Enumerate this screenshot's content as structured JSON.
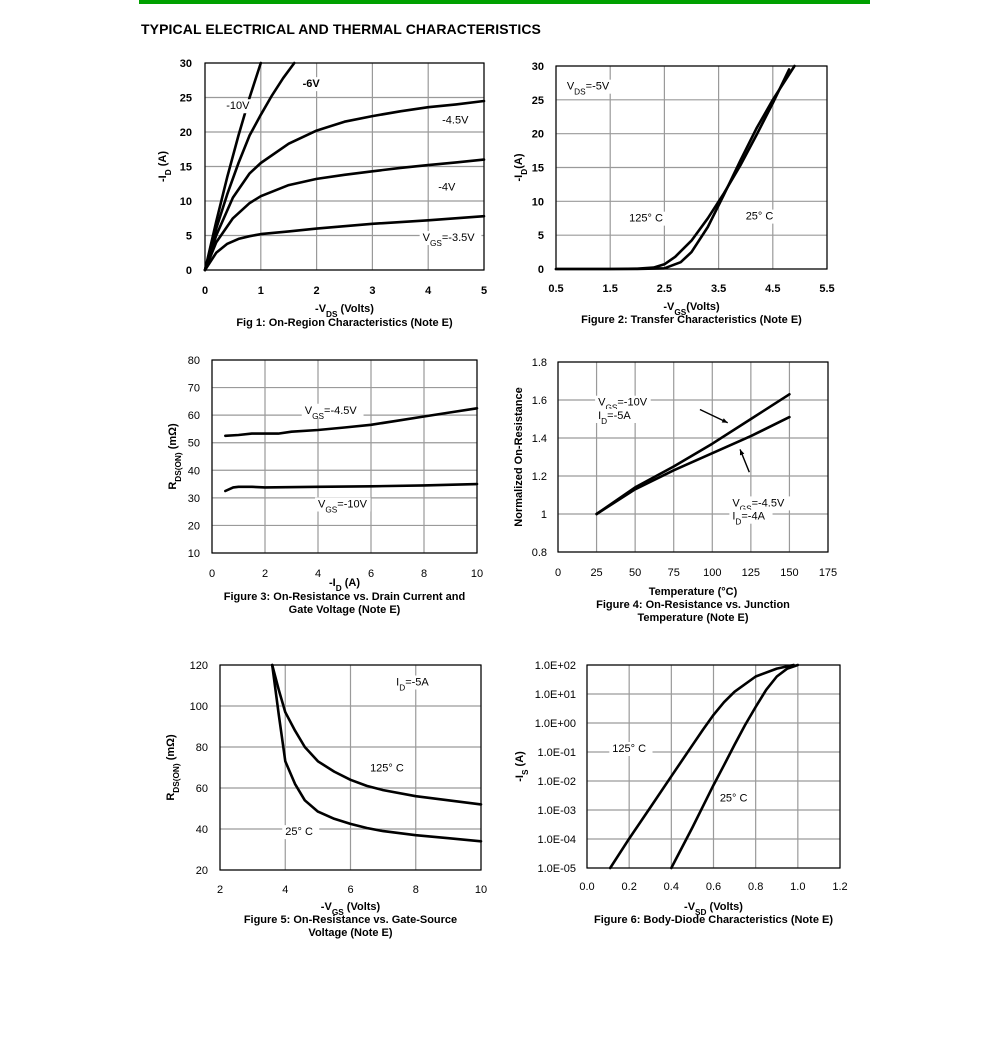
{
  "header": {
    "title": "TYPICAL ELECTRICAL AND THERMAL CHARACTERISTICS",
    "accent_color": "#00a000"
  },
  "chart_data": [
    {
      "type": "line",
      "caption": "Fig 1: On-Region Characteristics (Note E)",
      "xlabel": "-VDS (Volts)",
      "ylabel": "-ID (A)",
      "xlim": [
        0,
        5
      ],
      "ylim": [
        0,
        30
      ],
      "xticks": [
        "0",
        "1",
        "2",
        "3",
        "4",
        "5"
      ],
      "yticks": [
        "0",
        "5",
        "10",
        "15",
        "20",
        "25",
        "30"
      ],
      "grid": true,
      "series": [
        {
          "name": "-10V",
          "x": [
            0,
            0.2,
            0.4,
            0.6,
            0.8,
            1.0
          ],
          "y": [
            0,
            7,
            13.5,
            19.5,
            25,
            30
          ]
        },
        {
          "name": "-6V",
          "x": [
            0,
            0.2,
            0.4,
            0.6,
            0.8,
            1.0,
            1.2,
            1.4,
            1.6
          ],
          "y": [
            0,
            6,
            11,
            15.5,
            19.5,
            22.5,
            25.3,
            27.8,
            30
          ]
        },
        {
          "name": "-4.5V",
          "x": [
            0,
            0.2,
            0.5,
            0.8,
            1.0,
            1.5,
            2.0,
            2.5,
            3.0,
            3.5,
            4.0,
            4.5,
            5.0
          ],
          "y": [
            0,
            5,
            10.5,
            14,
            15.5,
            18.3,
            20.2,
            21.5,
            22.3,
            23,
            23.6,
            24,
            24.5
          ]
        },
        {
          "name": "-4V",
          "x": [
            0,
            0.2,
            0.5,
            0.8,
            1.0,
            1.5,
            2.0,
            2.5,
            3.0,
            3.5,
            4.0,
            4.5,
            5.0
          ],
          "y": [
            0,
            4,
            7.5,
            9.7,
            10.7,
            12.3,
            13.2,
            13.8,
            14.3,
            14.8,
            15.2,
            15.6,
            16
          ]
        },
        {
          "name": "VGS=-3.5V",
          "x": [
            0,
            0.2,
            0.4,
            0.6,
            0.8,
            1.0,
            1.5,
            2.0,
            3.0,
            4.0,
            5.0
          ],
          "y": [
            0,
            2.5,
            3.8,
            4.5,
            4.9,
            5.2,
            5.6,
            6.0,
            6.7,
            7.2,
            7.8
          ]
        }
      ],
      "labels": [
        {
          "text": "-10V",
          "x": 0.38,
          "y": 23.3
        },
        {
          "text": "-6V",
          "x": 1.75,
          "y": 26.5
        },
        {
          "text": "-4.5V",
          "x": 4.25,
          "y": 21.2
        },
        {
          "text": "-4V",
          "x": 4.18,
          "y": 11.5
        },
        {
          "text": "VGS=-3.5V",
          "x": 3.9,
          "y": 4.2
        }
      ]
    },
    {
      "type": "line",
      "caption": "Figure 2: Transfer Characteristics (Note E)",
      "xlabel": "-VGS(Volts)",
      "ylabel": "-ID(A)",
      "xlim": [
        0.5,
        5.5
      ],
      "ylim": [
        0,
        30
      ],
      "xticks": [
        "0.5",
        "1.5",
        "2.5",
        "3.5",
        "4.5",
        "5.5"
      ],
      "yticks": [
        "0",
        "5",
        "10",
        "15",
        "20",
        "25",
        "30"
      ],
      "grid": true,
      "series": [
        {
          "name": "125° C",
          "x": [
            0.5,
            1.5,
            2.0,
            2.3,
            2.5,
            2.7,
            3.0,
            3.3,
            3.6,
            3.9,
            4.2,
            4.5,
            4.8
          ],
          "y": [
            0,
            0,
            0.05,
            0.2,
            0.7,
            1.8,
            4.2,
            7.5,
            11.2,
            15.3,
            19.8,
            24.5,
            29.5
          ]
        },
        {
          "name": "25° C",
          "x": [
            0.5,
            1.5,
            2.0,
            2.5,
            2.8,
            3.0,
            3.3,
            3.6,
            3.9,
            4.2,
            4.5,
            4.9
          ],
          "y": [
            0,
            0,
            0,
            0.1,
            1.0,
            2.5,
            6.2,
            11,
            16,
            20.8,
            25,
            30
          ]
        }
      ],
      "labels": [
        {
          "text": "VDS=-5V",
          "x": 0.7,
          "y": 26.5
        },
        {
          "text": "125° C",
          "x": 1.85,
          "y": 7
        },
        {
          "text": "25° C",
          "x": 4.0,
          "y": 7.3
        }
      ]
    },
    {
      "type": "line",
      "caption": "Figure 3: On-Resistance vs. Drain Current and Gate Voltage (Note E)",
      "xlabel": "-ID (A)",
      "ylabel": "RDS(ON) (mΩ)",
      "xlim": [
        0,
        10
      ],
      "ylim": [
        10,
        80
      ],
      "xticks": [
        "0",
        "2",
        "4",
        "6",
        "8",
        "10"
      ],
      "yticks": [
        "10",
        "20",
        "30",
        "40",
        "50",
        "60",
        "70",
        "80"
      ],
      "grid": true,
      "series": [
        {
          "name": "VGS=-4.5V",
          "x": [
            0.5,
            1.0,
            1.5,
            2.0,
            2.5,
            3.0,
            4.0,
            5.0,
            6.0,
            7.0,
            8.0,
            9.0,
            10.0
          ],
          "y": [
            52.5,
            52.8,
            53.3,
            53.3,
            53.3,
            54.0,
            54.6,
            55.5,
            56.5,
            58.0,
            59.5,
            61.0,
            62.5
          ]
        },
        {
          "name": "VGS=-10V",
          "x": [
            0.5,
            0.8,
            1.0,
            1.5,
            2.0,
            4.0,
            6.0,
            8.0,
            10.0
          ],
          "y": [
            32.5,
            33.8,
            34.0,
            34.0,
            33.8,
            34.0,
            34.2,
            34.5,
            35.0
          ]
        }
      ],
      "labels": [
        {
          "text": "VGS=-4.5V",
          "x": 3.5,
          "y": 60.5
        },
        {
          "text": "VGS=-10V",
          "x": 4.0,
          "y": 26.5
        }
      ]
    },
    {
      "type": "line",
      "caption": "Figure 4: On-Resistance vs. Junction Temperature (Note E)",
      "xlabel": "Temperature (°C)",
      "ylabel": "Normalized On-Resistance",
      "xlim": [
        0,
        175
      ],
      "ylim": [
        0.8,
        1.8
      ],
      "xticks": [
        "0",
        "25",
        "50",
        "75",
        "100",
        "125",
        "150",
        "175"
      ],
      "yticks": [
        "0.8",
        "1",
        "1.2",
        "1.4",
        "1.6",
        "1.8"
      ],
      "grid": true,
      "series": [
        {
          "name": "VGS=-10V ID=-5A",
          "x": [
            25,
            50,
            75,
            100,
            125,
            150
          ],
          "y": [
            1.0,
            1.14,
            1.25,
            1.37,
            1.5,
            1.63
          ]
        },
        {
          "name": "VGS=-4.5V ID=-4A",
          "x": [
            25,
            50,
            75,
            100,
            125,
            150
          ],
          "y": [
            1.0,
            1.13,
            1.23,
            1.32,
            1.41,
            1.51
          ]
        }
      ],
      "labels": [
        {
          "text": "VGS=-10V",
          "x": 26,
          "y": 1.57
        },
        {
          "text": "ID=-5A",
          "x": 26,
          "y": 1.5
        },
        {
          "text": "VGS=-4.5V",
          "x": 113,
          "y": 1.04
        },
        {
          "text": "ID=-4A",
          "x": 113,
          "y": 0.97
        }
      ]
    },
    {
      "type": "line",
      "caption": "Figure 5: On-Resistance vs. Gate-Source Voltage (Note E)",
      "xlabel": "-VGS (Volts)",
      "ylabel": "RDS(ON) (mΩ)",
      "xlim": [
        2,
        10
      ],
      "ylim": [
        20,
        120
      ],
      "xticks": [
        "2",
        "4",
        "6",
        "8",
        "10"
      ],
      "yticks": [
        "20",
        "40",
        "60",
        "80",
        "100",
        "120"
      ],
      "grid": true,
      "series": [
        {
          "name": "125° C",
          "x": [
            3.6,
            3.8,
            4.0,
            4.3,
            4.6,
            5.0,
            5.5,
            6.0,
            6.5,
            7.0,
            8.0,
            9.0,
            10.0
          ],
          "y": [
            120,
            108,
            97,
            88,
            80,
            73,
            68,
            64,
            61,
            59,
            56,
            54,
            52
          ]
        },
        {
          "name": "25° C",
          "x": [
            3.6,
            3.8,
            4.0,
            4.3,
            4.6,
            5.0,
            5.5,
            6.0,
            6.5,
            7.0,
            8.0,
            9.0,
            10.0
          ],
          "y": [
            120,
            96,
            73,
            62,
            54,
            48.5,
            45,
            42.5,
            40.5,
            39,
            37,
            35.5,
            34
          ]
        }
      ],
      "labels": [
        {
          "text": "ID=-5A",
          "x": 7.4,
          "y": 110
        },
        {
          "text": "125° C",
          "x": 6.6,
          "y": 68
        },
        {
          "text": "25° C",
          "x": 4.0,
          "y": 37
        }
      ]
    },
    {
      "type": "line",
      "caption": "Figure 6: Body-Diode Characteristics (Note E)",
      "xlabel": "-VSD (Volts)",
      "ylabel": "-IS (A)",
      "xlim": [
        0,
        1.2
      ],
      "ylim": [
        1e-05,
        100
      ],
      "yscale": "log",
      "xticks": [
        "0.0",
        "0.2",
        "0.4",
        "0.6",
        "0.8",
        "1.0",
        "1.2"
      ],
      "yticks": [
        "1.0E-05",
        "1.0E-04",
        "1.0E-03",
        "1.0E-02",
        "1.0E-01",
        "1.0E+00",
        "1.0E+01",
        "1.0E+02"
      ],
      "grid": true,
      "series": [
        {
          "name": "125° C",
          "x": [
            0.11,
            0.2,
            0.3,
            0.4,
            0.5,
            0.55,
            0.6,
            0.65,
            0.7,
            0.8,
            0.9,
            0.98
          ],
          "y": [
            1e-05,
            0.000103,
            0.00122,
            0.0145,
            0.172,
            0.59,
            1.9,
            5.2,
            12,
            40,
            75,
            100
          ]
        },
        {
          "name": "25° C",
          "x": [
            0.4,
            0.5,
            0.55,
            0.6,
            0.65,
            0.7,
            0.75,
            0.8,
            0.85,
            0.9,
            0.95,
            1.0
          ],
          "y": [
            1e-05,
            0.00025,
            0.00135,
            0.0072,
            0.035,
            0.18,
            0.85,
            3.6,
            14,
            40,
            75,
            100
          ]
        }
      ],
      "labels": [
        {
          "text": "125° C",
          "x": 0.12,
          "y": 0.1
        },
        {
          "text": "25° C",
          "x": 0.63,
          "y": 0.002
        }
      ]
    }
  ]
}
